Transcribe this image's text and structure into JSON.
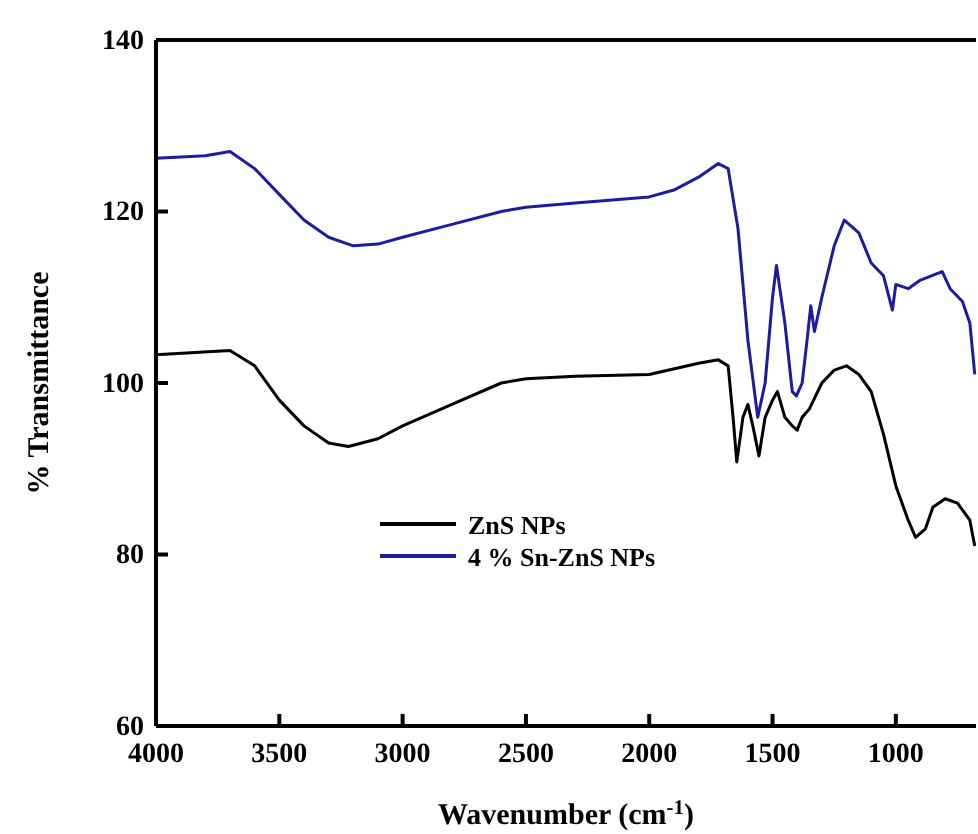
{
  "chart_data": {
    "type": "line",
    "xlabel": "Wavenumber (cm$^{-1}$)",
    "ylabel": "% Transmittance",
    "xlim": [
      4000,
      675
    ],
    "xticks": [
      4000,
      3500,
      3000,
      2500,
      2000,
      1500,
      1000
    ],
    "ylim": [
      60,
      140
    ],
    "yticks": [
      60,
      80,
      100,
      120,
      140
    ],
    "legend": "bottom",
    "grid": false,
    "marker": "none",
    "line_style": "solid",
    "series": [
      {
        "name": "ZnS NPs",
        "color": "#000000",
        "x": [
          4000,
          3700,
          3600,
          3500,
          3400,
          3300,
          3220,
          3100,
          3000,
          2800,
          2600,
          2500,
          2300,
          2000,
          1800,
          1720,
          1680,
          1660,
          1645,
          1620,
          1600,
          1580,
          1555,
          1530,
          1500,
          1480,
          1450,
          1420,
          1400,
          1380,
          1350,
          1300,
          1250,
          1200,
          1150,
          1100,
          1050,
          1000,
          950,
          920,
          880,
          850,
          800,
          750,
          700,
          680
        ],
        "values": [
          103.3,
          103.8,
          102,
          98,
          95,
          93,
          92.6,
          93.5,
          95,
          97.5,
          100,
          100.5,
          100.8,
          101,
          102.3,
          102.7,
          102,
          96,
          90.8,
          96,
          97.5,
          95,
          91.5,
          96,
          98,
          99,
          96,
          95,
          94.5,
          96,
          97,
          100,
          101.5,
          102,
          101,
          99,
          94,
          88,
          84,
          82,
          83,
          85.5,
          86.5,
          86,
          84,
          81
        ]
      },
      {
        "name": "4 % Sn-ZnS NPs",
        "color": "#1c1ca0",
        "x": [
          4000,
          3800,
          3700,
          3600,
          3500,
          3400,
          3300,
          3200,
          3100,
          3000,
          2800,
          2600,
          2500,
          2300,
          2000,
          1900,
          1800,
          1720,
          1680,
          1640,
          1600,
          1560,
          1530,
          1500,
          1484,
          1450,
          1420,
          1403,
          1380,
          1360,
          1345,
          1330,
          1300,
          1250,
          1209,
          1150,
          1100,
          1050,
          1014,
          1000,
          950,
          900,
          812,
          780,
          730,
          700,
          680
        ],
        "values": [
          126.2,
          126.5,
          127,
          125,
          122,
          119,
          117,
          116,
          116.2,
          117,
          118.5,
          120,
          120.5,
          121,
          121.7,
          122.5,
          124,
          125.6,
          125,
          118,
          105,
          96,
          100,
          110,
          113.7,
          107,
          99,
          98.5,
          100,
          105,
          109,
          106,
          110,
          116,
          119,
          117.5,
          114,
          112.5,
          108.5,
          111.5,
          111,
          112,
          113,
          111,
          109.5,
          107,
          101
        ]
      }
    ]
  }
}
